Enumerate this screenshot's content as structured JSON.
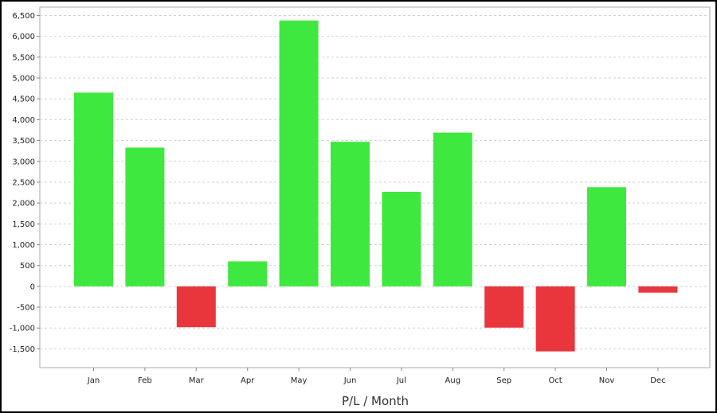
{
  "chart_data": {
    "type": "bar",
    "title": "",
    "xlabel": "P/L / Month",
    "ylabel": "",
    "categories": [
      "Jan",
      "Feb",
      "Mar",
      "Apr",
      "May",
      "Jun",
      "Jul",
      "Aug",
      "Sep",
      "Oct",
      "Nov",
      "Dec"
    ],
    "values": [
      4650,
      3330,
      -980,
      600,
      6380,
      3470,
      2270,
      3690,
      -990,
      -1560,
      2380,
      -150
    ],
    "ylim": [
      -1950,
      6700
    ],
    "yticks": [
      -1500,
      -1000,
      -500,
      0,
      500,
      1000,
      1500,
      2000,
      2500,
      3000,
      3500,
      4000,
      4500,
      5000,
      5500,
      6000,
      6500
    ],
    "ytick_labels": [
      "-1,500",
      "-1,000",
      "-500",
      "0",
      "500",
      "1,000",
      "1,500",
      "2,000",
      "2,500",
      "3,000",
      "3,500",
      "4,000",
      "4,500",
      "5,000",
      "5,500",
      "6,000",
      "6,500"
    ],
    "grid": true,
    "legend": "none",
    "colors": {
      "positive": "#3fe83f",
      "negative": "#e8363c",
      "grid": "#d0d0d0",
      "axis": "#888888"
    }
  }
}
